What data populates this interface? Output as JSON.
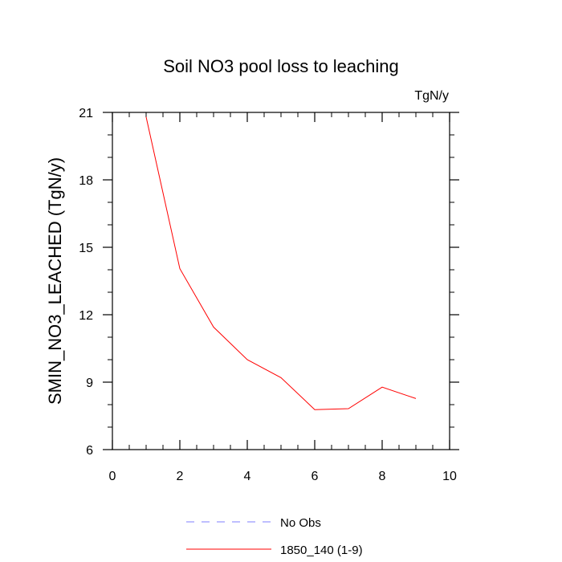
{
  "chart_data": {
    "type": "line",
    "title": "Soil NO3 pool loss to leaching",
    "units": "TgN/y",
    "ylabel": "SMIN_NO3_LEACHED  (TgN/y)",
    "xlabel": "",
    "xlim": [
      0,
      10
    ],
    "ylim": [
      6,
      21
    ],
    "xticks": [
      0,
      2,
      4,
      6,
      8,
      10
    ],
    "yticks": [
      6,
      9,
      12,
      15,
      18,
      21
    ],
    "grid": false,
    "legend_position": "bottom-center",
    "series": [
      {
        "name": "No Obs",
        "color": "#7f7fff",
        "dashed": true,
        "x": [],
        "y": []
      },
      {
        "name": "1850_140 (1-9)",
        "color": "#ff0000",
        "dashed": false,
        "x": [
          1,
          2,
          3,
          4,
          5,
          6,
          7,
          8,
          9
        ],
        "y": [
          20.8,
          14.05,
          11.45,
          10.0,
          9.2,
          7.78,
          7.82,
          8.78,
          8.27
        ]
      }
    ]
  }
}
